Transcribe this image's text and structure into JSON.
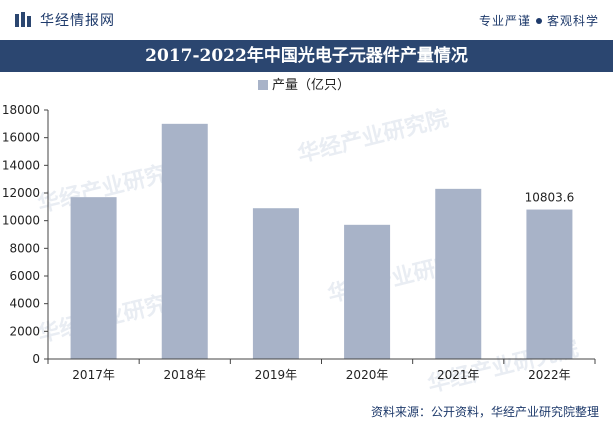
{
  "header": {
    "brand_name": "华经情报网",
    "slogan_left": "专业严谨",
    "slogan_right": "客观科学"
  },
  "watermark_text": "华经产业研究院",
  "footer": {
    "source": "资料来源：公开资料，华经产业研究院整理"
  },
  "colors": {
    "title_bar": "#2b4670",
    "bar": "#a8b3c8",
    "brand": "#1e3a6b"
  },
  "chart_data": {
    "type": "bar",
    "title": "2017-2022年中国光电子元器件产量情况",
    "categories": [
      "2017年",
      "2018年",
      "2019年",
      "2020年",
      "2021年",
      "2022年"
    ],
    "series": [
      {
        "name": "产量（亿只）",
        "values": [
          11700,
          17000,
          10900,
          9700,
          12300,
          10803.6
        ]
      }
    ],
    "data_labels": [
      {
        "category": "2022年",
        "text": "10803.6"
      }
    ],
    "ylim": [
      0,
      18000
    ],
    "yticks": [
      0,
      2000,
      4000,
      6000,
      8000,
      10000,
      12000,
      14000,
      16000,
      18000
    ],
    "legend": "top-center",
    "grid": false
  }
}
